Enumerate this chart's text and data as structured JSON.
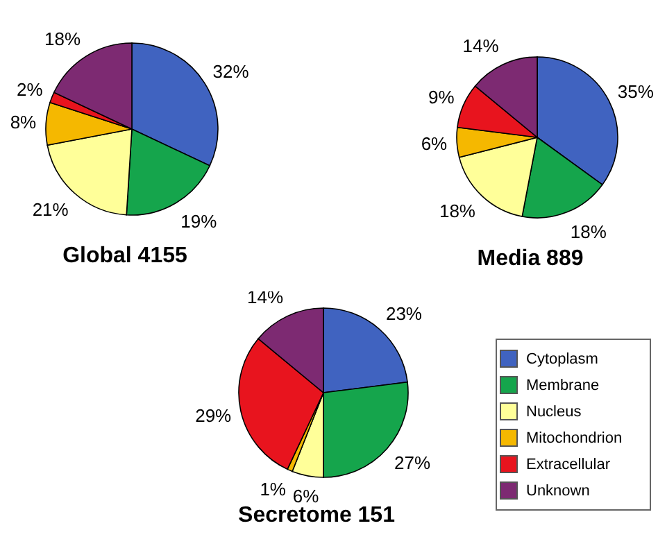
{
  "chart_data": [
    {
      "type": "pie",
      "title": "Global 4155",
      "categories": [
        null,
        null,
        null,
        null,
        null,
        null
      ],
      "values": [
        32,
        19,
        21,
        8,
        2,
        18
      ],
      "value_labels": [
        "32%",
        "19%",
        "21%",
        "8%",
        "2%",
        "18%"
      ],
      "colors": [
        "#4063c0",
        "#15a54c",
        "#ffff99",
        "#f5b800",
        "#e8141e",
        "#7d2a72"
      ]
    },
    {
      "type": "pie",
      "title": "Media 889",
      "categories": [
        null,
        null,
        null,
        null,
        null,
        null
      ],
      "values": [
        35,
        18,
        18,
        6,
        9,
        14
      ],
      "value_labels": [
        "35%",
        "18%",
        "18%",
        "6%",
        "9%",
        "14%"
      ],
      "colors": [
        "#4063c0",
        "#15a54c",
        "#ffff99",
        "#f5b800",
        "#e8141e",
        "#7d2a72"
      ]
    },
    {
      "type": "pie",
      "title": "Secretome 151",
      "categories": [
        "Cytoplasm",
        "Membrane",
        "Nucleus",
        "Mitochondrion",
        "Extracellular",
        "Unknown"
      ],
      "values": [
        23,
        27,
        6,
        1,
        29,
        14
      ],
      "value_labels": [
        "23%",
        "27%",
        "6%",
        "1%",
        "29%",
        "14%"
      ],
      "colors": [
        "#4063c0",
        "#15a54c",
        "#ffff99",
        "#f5b800",
        "#e8141e",
        "#7d2a72"
      ],
      "legend": "bottom right"
    }
  ]
}
